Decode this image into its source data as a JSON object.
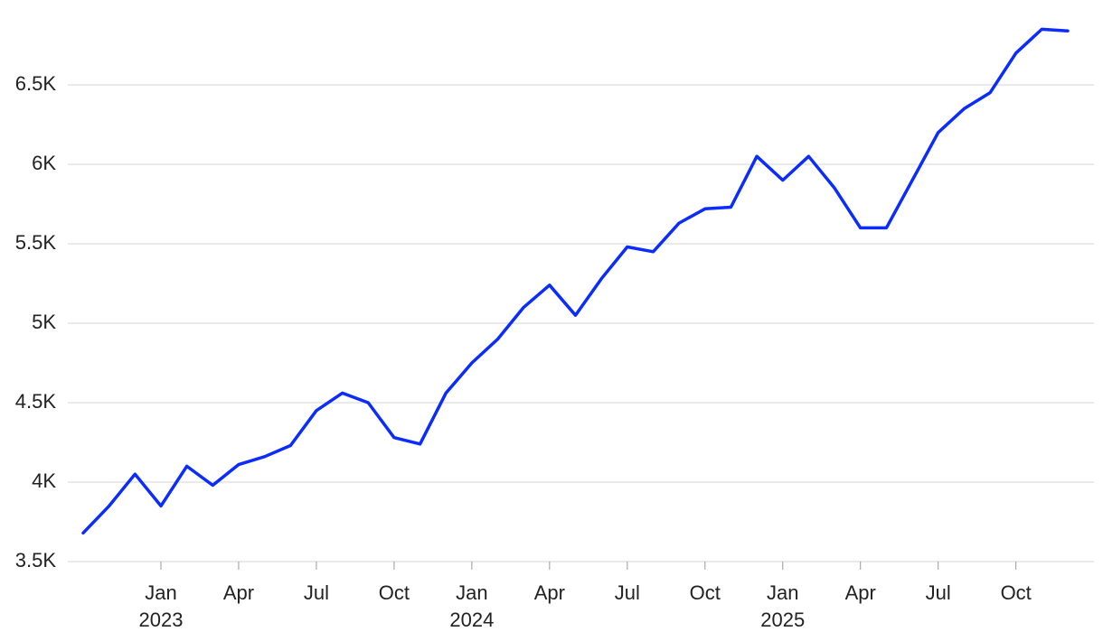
{
  "chart_data": {
    "type": "line",
    "x": [
      "2022-10",
      "2022-11",
      "2022-12",
      "2023-01",
      "2023-02",
      "2023-03",
      "2023-04",
      "2023-05",
      "2023-06",
      "2023-07",
      "2023-08",
      "2023-09",
      "2023-10",
      "2023-11",
      "2023-12",
      "2024-01",
      "2024-02",
      "2024-03",
      "2024-04",
      "2024-05",
      "2024-06",
      "2024-07",
      "2024-08",
      "2024-09",
      "2024-10",
      "2024-11",
      "2024-12",
      "2025-01",
      "2025-02",
      "2025-03",
      "2025-04",
      "2025-05",
      "2025-06",
      "2025-07",
      "2025-08",
      "2025-09",
      "2025-10",
      "2025-11",
      "2025-12"
    ],
    "series": [
      {
        "color": "#0a2cff",
        "values": [
          3680,
          3850,
          4050,
          3850,
          4100,
          3980,
          4110,
          4160,
          4230,
          4450,
          4560,
          4500,
          4280,
          4240,
          4560,
          4750,
          4900,
          5100,
          5240,
          5050,
          5280,
          5480,
          5450,
          5630,
          5720,
          5730,
          6050,
          5900,
          6050,
          5850,
          5600,
          5600,
          5900,
          6200,
          6350,
          6450,
          6700,
          6850,
          6840
        ]
      }
    ],
    "xlim": [
      "2022-10",
      "2025-12"
    ],
    "xticks": [
      {
        "value": "2023-01",
        "label": "Jan",
        "year": "2023"
      },
      {
        "value": "2023-04",
        "label": "Apr"
      },
      {
        "value": "2023-07",
        "label": "Jul"
      },
      {
        "value": "2023-10",
        "label": "Oct"
      },
      {
        "value": "2024-01",
        "label": "Jan",
        "year": "2024"
      },
      {
        "value": "2024-04",
        "label": "Apr"
      },
      {
        "value": "2024-07",
        "label": "Jul"
      },
      {
        "value": "2024-10",
        "label": "Oct"
      },
      {
        "value": "2025-01",
        "label": "Jan",
        "year": "2025"
      },
      {
        "value": "2025-04",
        "label": "Apr"
      },
      {
        "value": "2025-07",
        "label": "Jul"
      },
      {
        "value": "2025-10",
        "label": "Oct"
      }
    ],
    "ylim": [
      3500,
      6950
    ],
    "yticks": [
      {
        "value": 3500,
        "label": "3.5K"
      },
      {
        "value": 4000,
        "label": "4K"
      },
      {
        "value": 4500,
        "label": "4.5K"
      },
      {
        "value": 5000,
        "label": "5K"
      },
      {
        "value": 5500,
        "label": "5.5K"
      },
      {
        "value": 6000,
        "label": "6K"
      },
      {
        "value": 6500,
        "label": "6.5K"
      }
    ],
    "grid": true
  }
}
